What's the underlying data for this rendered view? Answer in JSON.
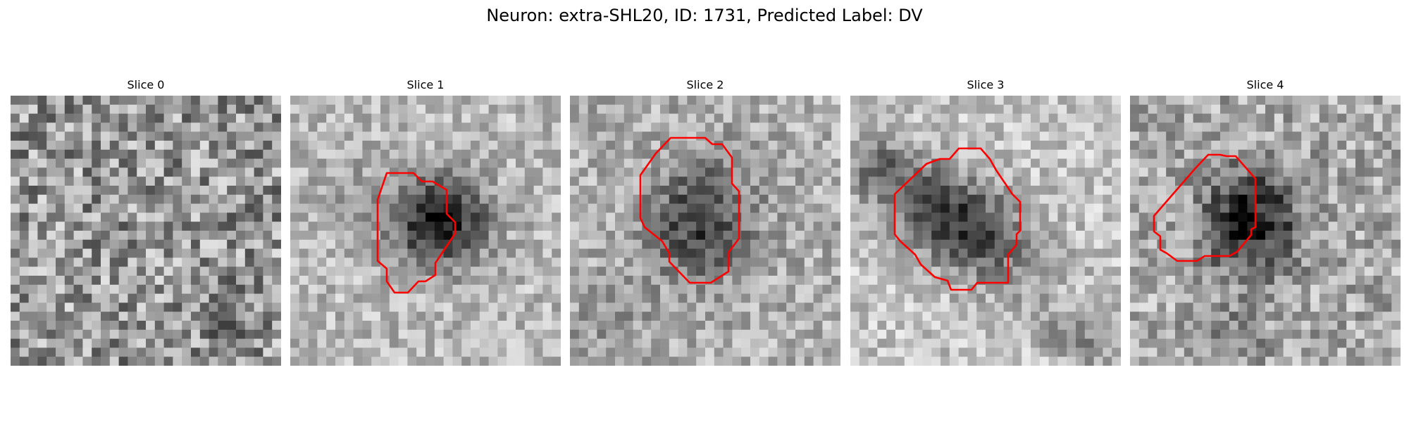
{
  "figure": {
    "title": "Neuron: extra-SHL20, ID: 1731, Predicted Label: DV"
  },
  "panels": [
    {
      "title": "Slice 0"
    },
    {
      "title": "Slice 1"
    },
    {
      "title": "Slice 2"
    },
    {
      "title": "Slice 3"
    },
    {
      "title": "Slice 4"
    }
  ],
  "colors": {
    "contour": "#ff0000"
  }
}
